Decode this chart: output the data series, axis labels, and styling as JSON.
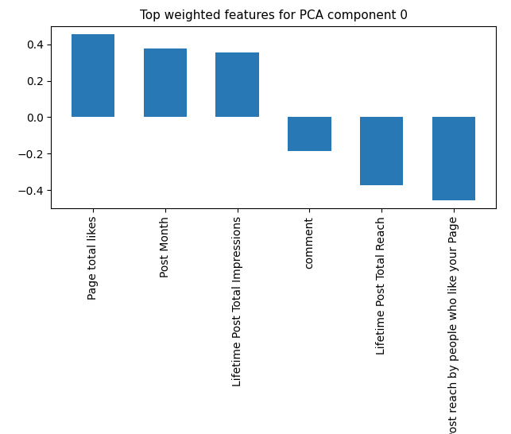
{
  "title": "Top weighted features for PCA component 0",
  "categories": [
    "Page total likes",
    "Post Month",
    "Lifetime Post Total Impressions",
    "comment",
    "Lifetime Post Total Reach",
    "Lifetime Post reach by people who like your Page"
  ],
  "values": [
    0.455,
    0.375,
    0.355,
    -0.185,
    -0.375,
    -0.455
  ],
  "bar_color": "#2878b5",
  "ylim": [
    -0.5,
    0.5
  ],
  "yticks": [
    -0.4,
    -0.2,
    0.0,
    0.2,
    0.4
  ],
  "title_fontsize": 11,
  "tick_fontsize": 10,
  "background_color": "#ffffff"
}
